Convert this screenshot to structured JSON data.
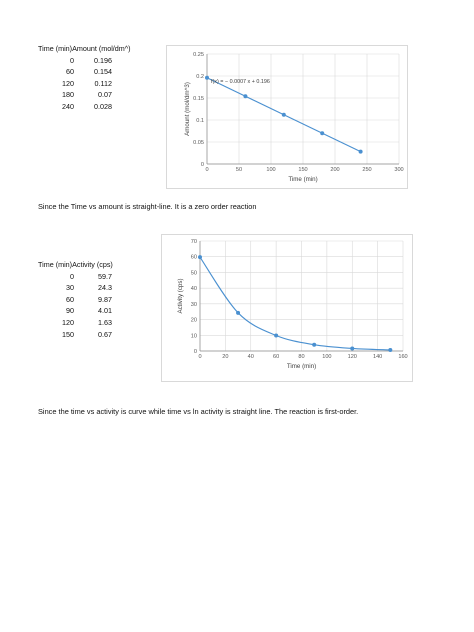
{
  "table1": {
    "header": "Time (min)Amount (mol/dm^)",
    "rows": [
      {
        "t": "0",
        "v": "0.196"
      },
      {
        "t": "60",
        "v": "0.154"
      },
      {
        "t": "120",
        "v": "0.112"
      },
      {
        "t": "180",
        "v": "0.07"
      },
      {
        "t": "240",
        "v": "0.028"
      }
    ]
  },
  "para1": "Since the Time vs amount is straight-line. It is a zero order reaction",
  "table2": {
    "header": "Time (min)Activity (cps)",
    "rows": [
      {
        "t": "0",
        "v": "59.7"
      },
      {
        "t": "30",
        "v": "24.3"
      },
      {
        "t": "60",
        "v": "9.87"
      },
      {
        "t": "90",
        "v": "4.01"
      },
      {
        "t": "120",
        "v": "1.63"
      },
      {
        "t": "150",
        "v": "0.67"
      }
    ]
  },
  "para2": "Since the time vs activity is curve while time vs ln activity is straight line. The reaction is first-order.",
  "chart_data": [
    {
      "type": "scatter",
      "title": "",
      "xlabel": "Time (min)",
      "ylabel": "Amount (mol/dm^3)",
      "x": [
        0,
        60,
        120,
        180,
        240
      ],
      "y": [
        0.196,
        0.154,
        0.112,
        0.07,
        0.028
      ],
      "xlim": [
        0,
        300
      ],
      "ylim": [
        0,
        0.25
      ],
      "xticks": [
        "0",
        "50",
        "100",
        "150",
        "200",
        "250",
        "300"
      ],
      "yticks": [
        "0",
        "0.05",
        "0.1",
        "0.15",
        "0.2",
        "0.25"
      ],
      "trendline": {
        "kind": "linear",
        "label": "f(x) = − 0.0007 x + 0.196",
        "slope": -0.0007,
        "intercept": 0.196
      },
      "grid": true,
      "color": "#4a90d0"
    },
    {
      "type": "scatter",
      "title": "",
      "xlabel": "Time (min)",
      "ylabel": "Activity (cps)",
      "x": [
        0,
        30,
        60,
        90,
        120,
        150
      ],
      "y": [
        59.7,
        24.3,
        9.87,
        4.01,
        1.63,
        0.67
      ],
      "xlim": [
        0,
        160
      ],
      "ylim": [
        0,
        70
      ],
      "xticks": [
        "0",
        "20",
        "40",
        "60",
        "80",
        "100",
        "120",
        "140",
        "160"
      ],
      "yticks": [
        "0",
        "10",
        "20",
        "30",
        "40",
        "50",
        "60",
        "70"
      ],
      "smooth_line": true,
      "grid": true,
      "color": "#4a90d0"
    }
  ]
}
